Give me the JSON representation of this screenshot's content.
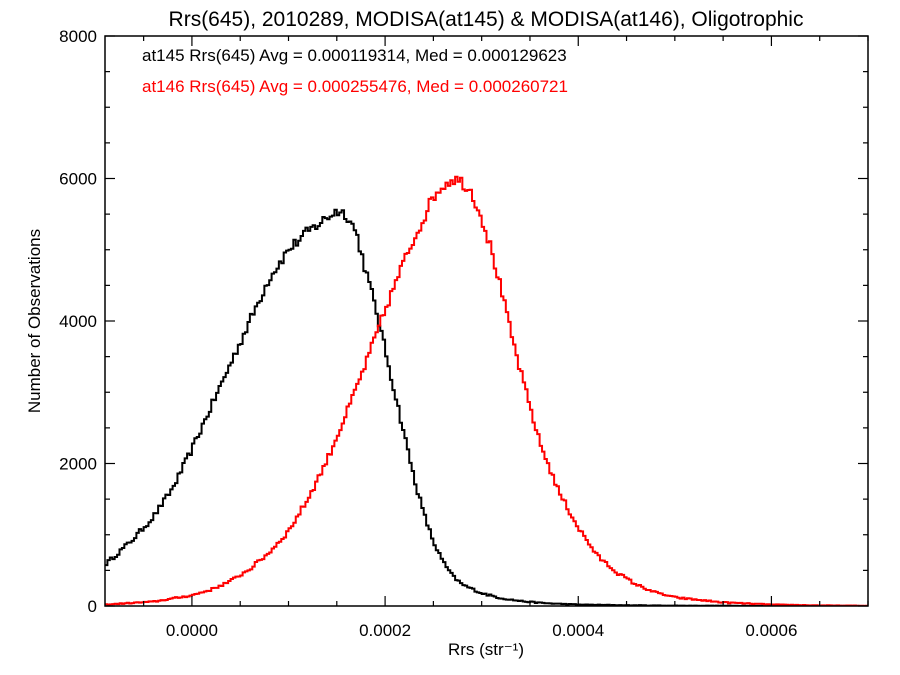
{
  "chart_data": {
    "type": "line",
    "style": "step-histogram",
    "title": "Rrs(645), 2010289, MODISA(at145) & MODISA(at146), Oligotrophic",
    "xlabel": "Rrs (str⁻¹)",
    "ylabel": "Number of Observations",
    "xlim": [
      -9e-05,
      0.0007
    ],
    "ylim": [
      0,
      8000
    ],
    "x_ticks": [
      0.0,
      0.0002,
      0.0004,
      0.0006
    ],
    "x_tick_labels": [
      "0.0000",
      "0.0002",
      "0.0004",
      "0.0006"
    ],
    "y_ticks": [
      0,
      2000,
      4000,
      6000,
      8000
    ],
    "y_tick_labels": [
      "0",
      "2000",
      "4000",
      "6000",
      "8000"
    ],
    "grid": false,
    "annotations": [
      {
        "text": "at145 Rrs(645) Avg = 0.000119314, Med = 0.000129623",
        "color": "#000000"
      },
      {
        "text": "at146 Rrs(645) Avg = 0.000255476, Med = 0.000260721",
        "color": "#ff0000"
      }
    ],
    "series": [
      {
        "color": "#000000",
        "x": [
          -9e-05,
          -8e-05,
          -6e-05,
          -4e-05,
          -2e-05,
          0.0,
          2e-05,
          4e-05,
          6e-05,
          8e-05,
          0.0001,
          0.00012,
          0.00014,
          0.00015,
          0.00016,
          0.00017,
          0.00018,
          0.00019,
          0.0002,
          0.00021,
          0.00022,
          0.00023,
          0.00024,
          0.00025,
          0.00026,
          0.00027,
          0.00028,
          0.0003,
          0.00032,
          0.00034,
          0.00036,
          0.00038,
          0.0004,
          0.00045,
          0.0005,
          0.0006,
          0.0007
        ],
        "values": [
          580,
          700,
          950,
          1250,
          1650,
          2200,
          2800,
          3400,
          4000,
          4600,
          5000,
          5250,
          5450,
          5550,
          5500,
          5250,
          4700,
          4200,
          3600,
          3000,
          2400,
          1800,
          1300,
          900,
          620,
          420,
          300,
          180,
          110,
          70,
          45,
          30,
          20,
          10,
          5,
          2,
          0
        ]
      },
      {
        "color": "#ff0000",
        "x": [
          -9e-05,
          -4e-05,
          0.0,
          2e-05,
          4e-05,
          6e-05,
          8e-05,
          0.0001,
          0.00012,
          0.00014,
          0.00016,
          0.00018,
          0.0002,
          0.00022,
          0.00024,
          0.00025,
          0.00026,
          0.00027,
          0.00028,
          0.00029,
          0.0003,
          0.00031,
          0.00032,
          0.00033,
          0.00034,
          0.00035,
          0.00036,
          0.00038,
          0.0004,
          0.00042,
          0.00044,
          0.00046,
          0.00048,
          0.0005,
          0.00055,
          0.0006,
          0.00065,
          0.0007
        ],
        "values": [
          20,
          60,
          150,
          230,
          350,
          520,
          750,
          1050,
          1500,
          2050,
          2700,
          3400,
          4150,
          4850,
          5450,
          5750,
          5900,
          6000,
          5950,
          5800,
          5450,
          5000,
          4450,
          3850,
          3300,
          2800,
          2300,
          1600,
          1100,
          700,
          470,
          300,
          190,
          120,
          50,
          20,
          8,
          3
        ]
      }
    ]
  }
}
